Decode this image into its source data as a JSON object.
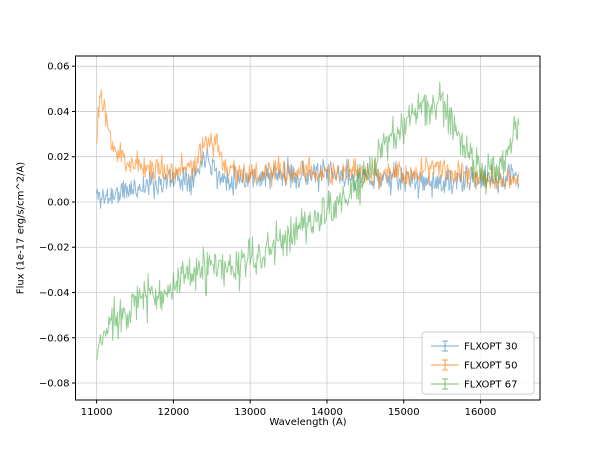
{
  "figure": {
    "background": "#ffffff",
    "axes_background": "#ffffff",
    "spine_color": "#000000"
  },
  "chart_data": {
    "type": "line",
    "title": "",
    "xlabel": "Wavelength (A)",
    "ylabel": "Flux (1e-17 erg/s/cm^2/A)",
    "xlim": [
      10725,
      16775
    ],
    "ylim": [
      -0.0875,
      0.0645
    ],
    "xticks": [
      11000,
      12000,
      13000,
      14000,
      15000,
      16000
    ],
    "yticks": [
      -0.08,
      -0.06,
      -0.04,
      -0.02,
      0.0,
      0.02,
      0.04,
      0.06
    ],
    "grid": true,
    "grid_color": "#cccccc",
    "x_start": 11000,
    "x_end": 16500,
    "x_step": 10,
    "legend": {
      "position": "lower right",
      "entries": [
        "FLXOPT 30",
        "FLXOPT 50",
        "FLXOPT 67"
      ]
    },
    "series": [
      {
        "name": "FLXOPT 30",
        "color": "#1f77b4",
        "alpha": 0.5,
        "noise": 0.006,
        "seed": 11,
        "trend_x": [
          11000,
          11100,
          11300,
          11600,
          12000,
          12300,
          12420,
          12500,
          12600,
          13000,
          13500,
          14000,
          14500,
          15000,
          15500,
          16000,
          16300,
          16500
        ],
        "trend_y": [
          0.003,
          0.002,
          0.004,
          0.007,
          0.01,
          0.012,
          0.022,
          0.018,
          0.01,
          0.011,
          0.012,
          0.012,
          0.011,
          0.01,
          0.008,
          0.01,
          0.01,
          0.013
        ]
      },
      {
        "name": "FLXOPT 50",
        "color": "#ff7f0e",
        "alpha": 0.6,
        "noise": 0.006,
        "seed": 23,
        "trend_x": [
          11000,
          11050,
          11120,
          11250,
          11400,
          11700,
          12000,
          12300,
          12450,
          12550,
          12700,
          13000,
          13500,
          14000,
          14500,
          15000,
          15400,
          15700,
          16000,
          16500
        ],
        "trend_y": [
          0.03,
          0.048,
          0.035,
          0.022,
          0.018,
          0.015,
          0.014,
          0.016,
          0.028,
          0.026,
          0.015,
          0.012,
          0.013,
          0.013,
          0.012,
          0.012,
          0.016,
          0.014,
          0.01,
          0.012
        ]
      },
      {
        "name": "FLXOPT 67",
        "color": "#2ca02c",
        "alpha": 0.5,
        "noise": 0.009,
        "seed": 37,
        "trend_x": [
          11000,
          11080,
          11200,
          11350,
          11500,
          11700,
          11900,
          12100,
          12300,
          12500,
          12700,
          12900,
          13100,
          13300,
          13500,
          13700,
          13900,
          14100,
          14300,
          14500,
          14700,
          14900,
          15100,
          15300,
          15500,
          15700,
          15900,
          16100,
          16300,
          16500
        ],
        "trend_y": [
          -0.07,
          -0.06,
          -0.052,
          -0.048,
          -0.045,
          -0.041,
          -0.039,
          -0.036,
          -0.031,
          -0.029,
          -0.031,
          -0.027,
          -0.024,
          -0.02,
          -0.015,
          -0.01,
          -0.006,
          -0.001,
          0.003,
          0.01,
          0.022,
          0.031,
          0.038,
          0.042,
          0.043,
          0.032,
          0.016,
          0.012,
          0.02,
          0.034
        ]
      }
    ]
  }
}
